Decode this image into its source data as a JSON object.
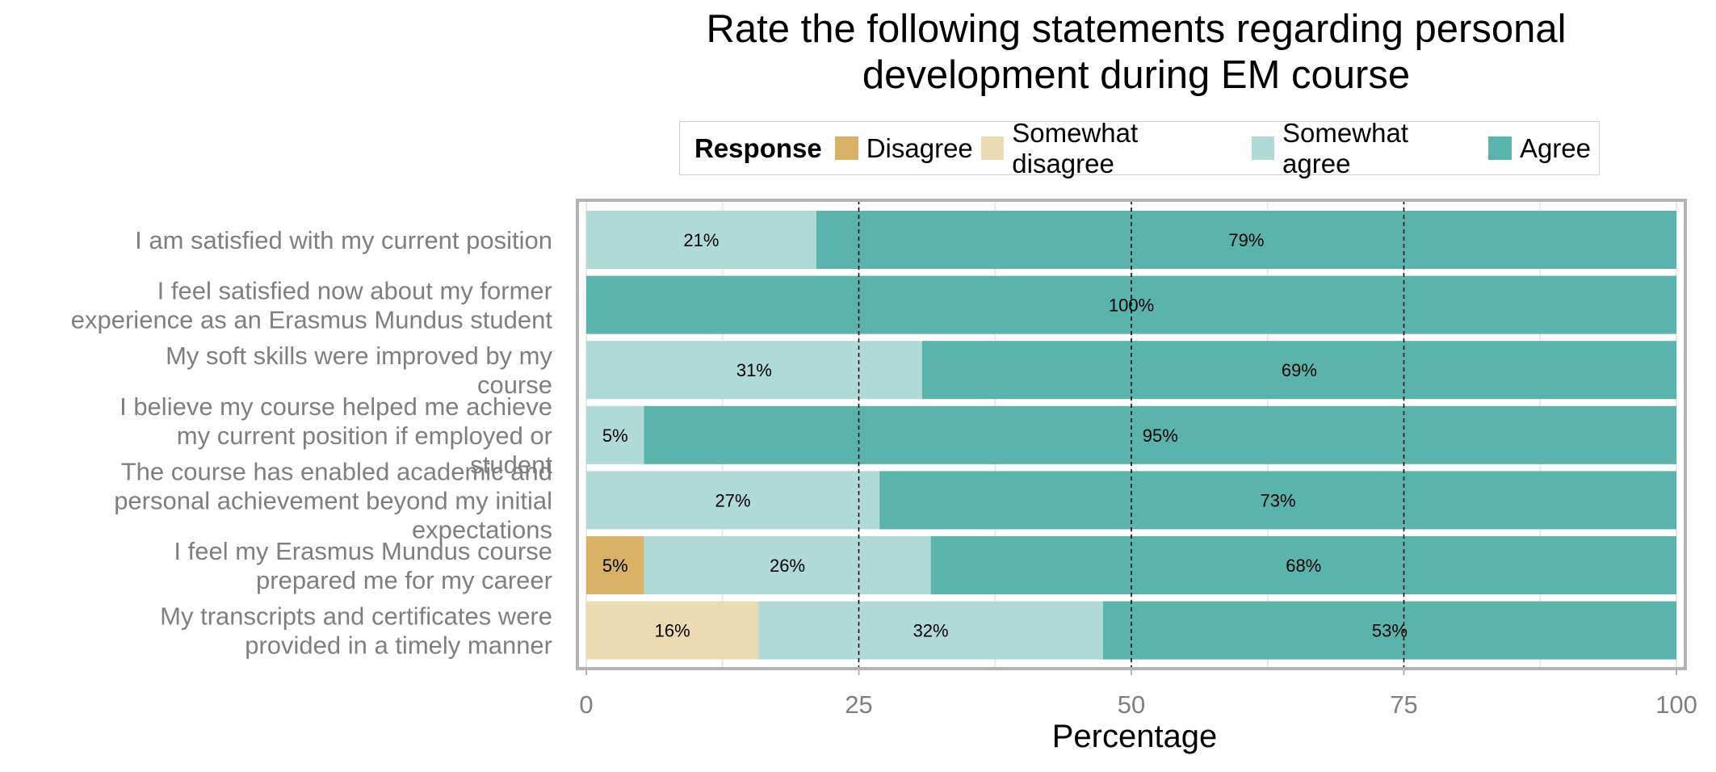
{
  "chart_data": {
    "type": "bar",
    "orientation": "horizontal",
    "stacked": true,
    "title": "Rate the following statements regarding personal\ndevelopment during EM course",
    "xlabel": "Percentage",
    "ylabel": "",
    "xlim": [
      0,
      100
    ],
    "xticks": [
      "0",
      "25",
      "50",
      "75",
      "100"
    ],
    "grid": true,
    "legend": {
      "title": "Response",
      "placement": "top",
      "entries": [
        "Disagree",
        "Somewhat disagree",
        "Somewhat agree",
        "Agree"
      ]
    },
    "colors": {
      "Disagree": "#d9b166",
      "Somewhat disagree": "#ebdbb2",
      "Somewhat agree": "#afdad6",
      "Agree": "#5ab4ac"
    },
    "categories": [
      "I am satisfied with my current position",
      "I feel satisfied now about my former\nexperience as an Erasmus Mundus student",
      "My soft skills were improved by my\ncourse",
      "I believe my course helped me achieve\nmy current position if employed or\nstudent",
      "The course has enabled academic and\npersonal achievement beyond my initial\nexpectations",
      "I feel my Erasmus Mundus course\nprepared me for my career",
      "My transcripts and certificates were\nprovided in a timely manner"
    ],
    "series": [
      {
        "name": "Disagree",
        "values": [
          0,
          0,
          0,
          0,
          0,
          5.3,
          0
        ],
        "labels": [
          "",
          "",
          "",
          "",
          "",
          "5%",
          ""
        ]
      },
      {
        "name": "Somewhat disagree",
        "values": [
          0,
          0,
          0,
          0,
          0,
          0,
          15.8
        ],
        "labels": [
          "",
          "",
          "",
          "",
          "",
          "",
          "16%"
        ]
      },
      {
        "name": "Somewhat agree",
        "values": [
          21.1,
          0,
          30.8,
          5.3,
          26.9,
          26.3,
          31.6
        ],
        "labels": [
          "21%",
          "",
          "31%",
          "5%",
          "27%",
          "26%",
          "32%"
        ]
      },
      {
        "name": "Agree",
        "values": [
          78.9,
          100,
          69.2,
          94.7,
          73.1,
          68.4,
          52.6
        ],
        "labels": [
          "79%",
          "100%",
          "69%",
          "95%",
          "73%",
          "68%",
          "53%"
        ]
      }
    ]
  }
}
